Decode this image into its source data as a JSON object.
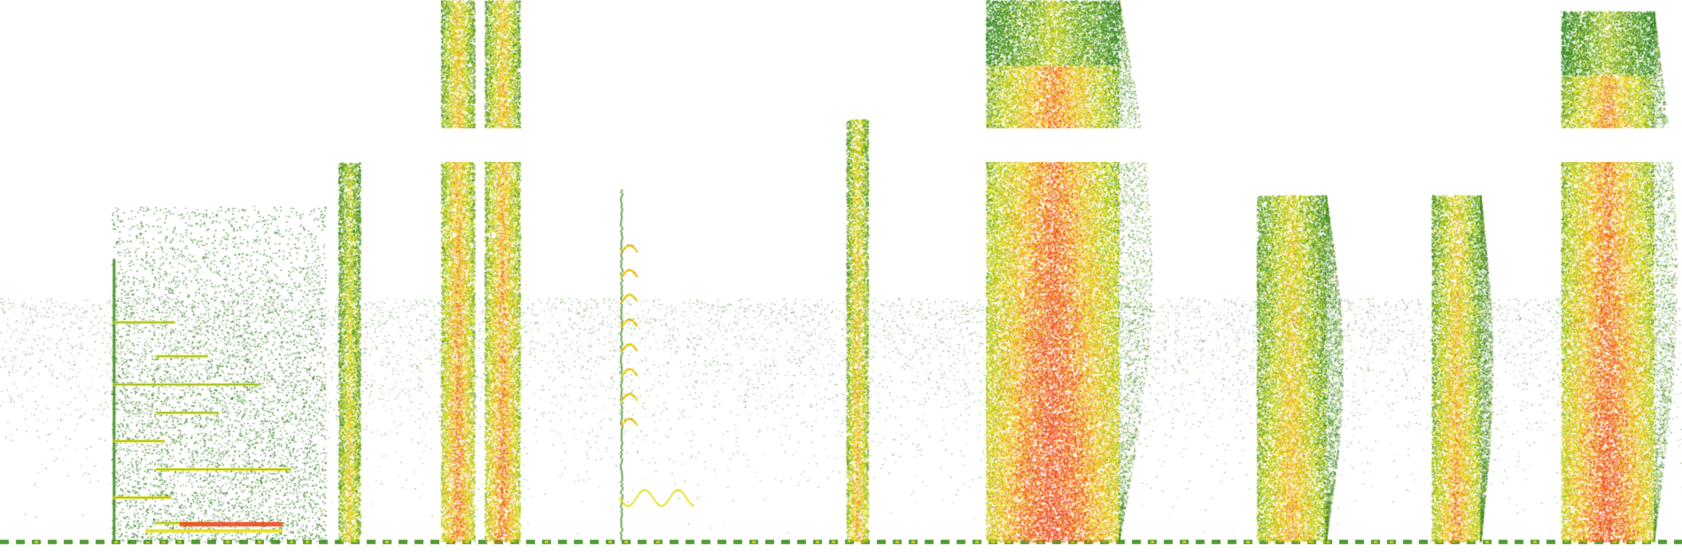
{
  "figure": {
    "kind": "spectrogram",
    "background_color": "#ffffff",
    "colormap": [
      "#2e7d1a",
      "#3f8f1f",
      "#9bbf1a",
      "#e8e01a",
      "#f0a018",
      "#f04a20"
    ]
  },
  "noise_floor": {
    "description_free": true,
    "strength": 0.35
  },
  "segments": [
    {
      "id": "seg-1",
      "t_start": 0.066,
      "t_end": 0.168,
      "f_top": 0.62,
      "intensity": 0.55,
      "style": "harmonic-comb"
    },
    {
      "id": "seg-2",
      "t_start": 0.201,
      "t_end": 0.214,
      "f_top": 0.7,
      "intensity": 0.6,
      "style": "thin-column"
    },
    {
      "id": "seg-3",
      "t_start": 0.262,
      "t_end": 0.282,
      "f_top": 1.0,
      "intensity": 0.8,
      "style": "dense-column"
    },
    {
      "id": "seg-4",
      "t_start": 0.288,
      "t_end": 0.309,
      "f_top": 1.0,
      "intensity": 0.8,
      "style": "dense-column"
    },
    {
      "id": "seg-5",
      "t_start": 0.368,
      "t_end": 0.412,
      "f_top": 0.65,
      "intensity": 0.45,
      "style": "chirp-sweep"
    },
    {
      "id": "seg-6",
      "t_start": 0.503,
      "t_end": 0.516,
      "f_top": 0.78,
      "intensity": 0.7,
      "style": "thin-column"
    },
    {
      "id": "seg-7",
      "t_start": 0.586,
      "t_end": 0.665,
      "f_top": 1.0,
      "intensity": 0.95,
      "style": "broad-burst"
    },
    {
      "id": "seg-8",
      "t_start": 0.747,
      "t_end": 0.788,
      "f_top": 0.64,
      "intensity": 0.7,
      "style": "broad-burst"
    },
    {
      "id": "seg-9",
      "t_start": 0.851,
      "t_end": 0.88,
      "f_top": 0.64,
      "intensity": 0.75,
      "style": "broad-burst"
    },
    {
      "id": "seg-10",
      "t_start": 0.928,
      "t_end": 0.983,
      "f_top": 0.98,
      "intensity": 0.9,
      "style": "broad-burst"
    }
  ]
}
